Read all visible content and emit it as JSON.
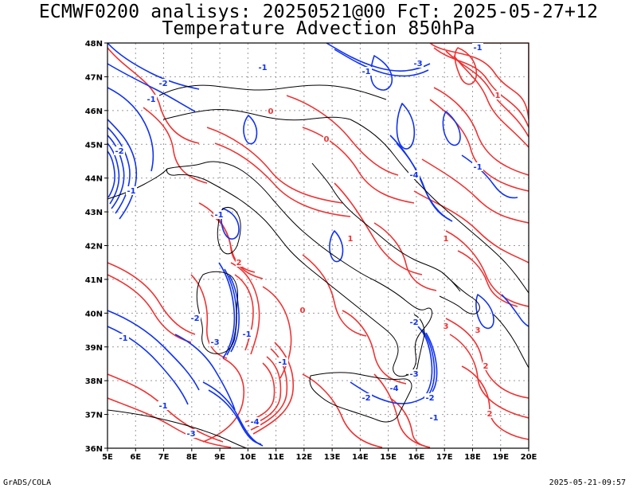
{
  "title": {
    "line1": "ECMWF0200 analisys: 20250521@00 FcT: 2025-05-27+12",
    "line2": "Temperature Advection 850hPa"
  },
  "axes": {
    "lat_labels": [
      "48N",
      "47N",
      "46N",
      "45N",
      "44N",
      "43N",
      "42N",
      "41N",
      "40N",
      "39N",
      "38N",
      "37N",
      "36N"
    ],
    "lon_labels": [
      "5E",
      "6E",
      "7E",
      "8E",
      "9E",
      "10E",
      "11E",
      "12E",
      "13E",
      "14E",
      "15E",
      "16E",
      "17E",
      "18E",
      "19E",
      "20E"
    ],
    "lat_range": [
      36,
      48
    ],
    "lon_range": [
      5,
      20
    ]
  },
  "contour_labels": [
    "-1",
    "-2",
    "-3",
    "-4",
    "1",
    "2",
    "3",
    "0"
  ],
  "colors": {
    "warm_advection": "#ee3333",
    "cold_advection": "#1133ee",
    "coastline": "#000000",
    "grid": "#999999"
  },
  "footer": {
    "left": "GrADS/COLA",
    "right": "2025-05-21-09:57"
  }
}
